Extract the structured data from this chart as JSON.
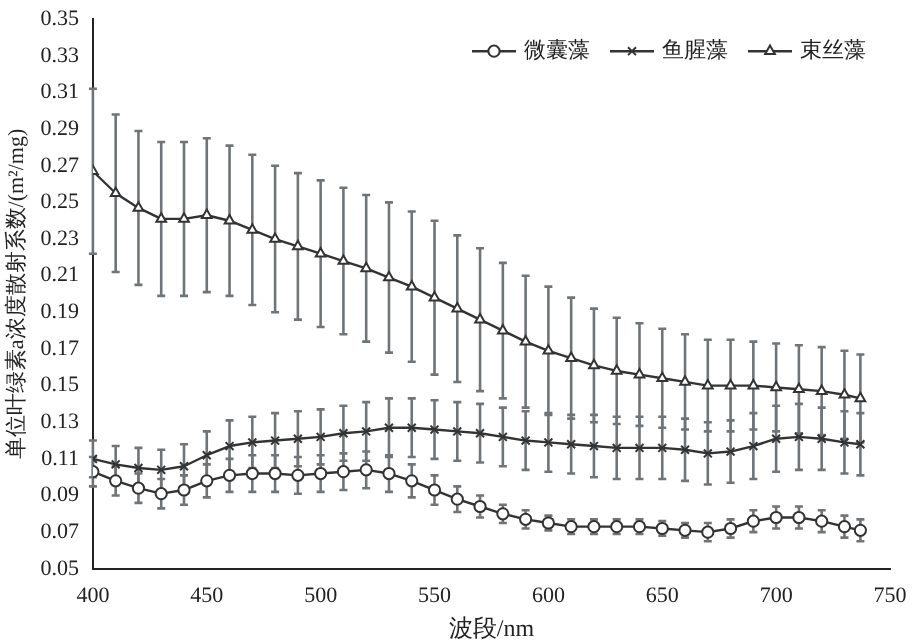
{
  "chart_data": {
    "type": "line",
    "xlabel": "波段/nm",
    "ylabel": "单位叶绿素a浓度散射系数/(m²/mg)",
    "xlim": [
      400,
      750
    ],
    "xticks": [
      400,
      450,
      500,
      550,
      600,
      650,
      700,
      750
    ],
    "ylim": [
      0.05,
      0.35
    ],
    "yticks": [
      0.05,
      0.07,
      0.09,
      0.11,
      0.13,
      0.15,
      0.17,
      0.19,
      0.21,
      0.23,
      0.25,
      0.27,
      0.29,
      0.31,
      0.33,
      0.35
    ],
    "x": [
      400,
      410,
      420,
      430,
      440,
      450,
      460,
      470,
      480,
      490,
      500,
      510,
      520,
      530,
      540,
      550,
      560,
      570,
      580,
      590,
      600,
      610,
      620,
      630,
      640,
      650,
      660,
      670,
      680,
      690,
      700,
      710,
      720,
      730,
      737
    ],
    "legend": "top right",
    "grid": false,
    "line_style": "solid",
    "series": [
      {
        "name": "微囊藻",
        "color": "#333333",
        "marker": "circle",
        "values": [
          0.103,
          0.098,
          0.094,
          0.091,
          0.093,
          0.098,
          0.101,
          0.102,
          0.102,
          0.101,
          0.102,
          0.103,
          0.104,
          0.102,
          0.098,
          0.093,
          0.088,
          0.084,
          0.08,
          0.077,
          0.075,
          0.073,
          0.073,
          0.073,
          0.073,
          0.072,
          0.071,
          0.07,
          0.072,
          0.076,
          0.078,
          0.078,
          0.076,
          0.073,
          0.071
        ],
        "errors": [
          0.008,
          0.008,
          0.008,
          0.008,
          0.008,
          0.009,
          0.009,
          0.01,
          0.01,
          0.01,
          0.01,
          0.01,
          0.01,
          0.01,
          0.009,
          0.008,
          0.007,
          0.006,
          0.005,
          0.005,
          0.004,
          0.004,
          0.004,
          0.004,
          0.004,
          0.004,
          0.004,
          0.005,
          0.005,
          0.006,
          0.006,
          0.006,
          0.006,
          0.006,
          0.006
        ]
      },
      {
        "name": "鱼腥藻",
        "color": "#333333",
        "marker": "cross",
        "values": [
          0.11,
          0.107,
          0.105,
          0.104,
          0.106,
          0.112,
          0.117,
          0.119,
          0.12,
          0.121,
          0.122,
          0.124,
          0.125,
          0.127,
          0.127,
          0.126,
          0.125,
          0.124,
          0.122,
          0.12,
          0.119,
          0.118,
          0.117,
          0.116,
          0.116,
          0.116,
          0.115,
          0.113,
          0.114,
          0.117,
          0.121,
          0.122,
          0.121,
          0.119,
          0.118
        ],
        "errors": [
          0.01,
          0.01,
          0.011,
          0.011,
          0.012,
          0.013,
          0.014,
          0.014,
          0.015,
          0.015,
          0.015,
          0.015,
          0.016,
          0.016,
          0.016,
          0.016,
          0.016,
          0.016,
          0.016,
          0.016,
          0.016,
          0.016,
          0.017,
          0.017,
          0.017,
          0.017,
          0.017,
          0.017,
          0.017,
          0.018,
          0.018,
          0.018,
          0.017,
          0.017,
          0.017
        ]
      },
      {
        "name": "束丝藻",
        "color": "#333333",
        "marker": "triangle",
        "values": [
          0.267,
          0.255,
          0.247,
          0.241,
          0.241,
          0.243,
          0.24,
          0.235,
          0.23,
          0.226,
          0.222,
          0.218,
          0.214,
          0.209,
          0.204,
          0.198,
          0.192,
          0.186,
          0.18,
          0.174,
          0.169,
          0.165,
          0.161,
          0.158,
          0.156,
          0.154,
          0.152,
          0.15,
          0.15,
          0.15,
          0.149,
          0.148,
          0.147,
          0.145,
          0.143
        ],
        "errors": [
          0.045,
          0.043,
          0.042,
          0.042,
          0.042,
          0.042,
          0.041,
          0.041,
          0.04,
          0.04,
          0.04,
          0.04,
          0.04,
          0.041,
          0.041,
          0.042,
          0.04,
          0.039,
          0.037,
          0.036,
          0.035,
          0.033,
          0.031,
          0.029,
          0.028,
          0.027,
          0.026,
          0.025,
          0.025,
          0.024,
          0.024,
          0.024,
          0.024,
          0.024,
          0.024
        ]
      }
    ]
  }
}
